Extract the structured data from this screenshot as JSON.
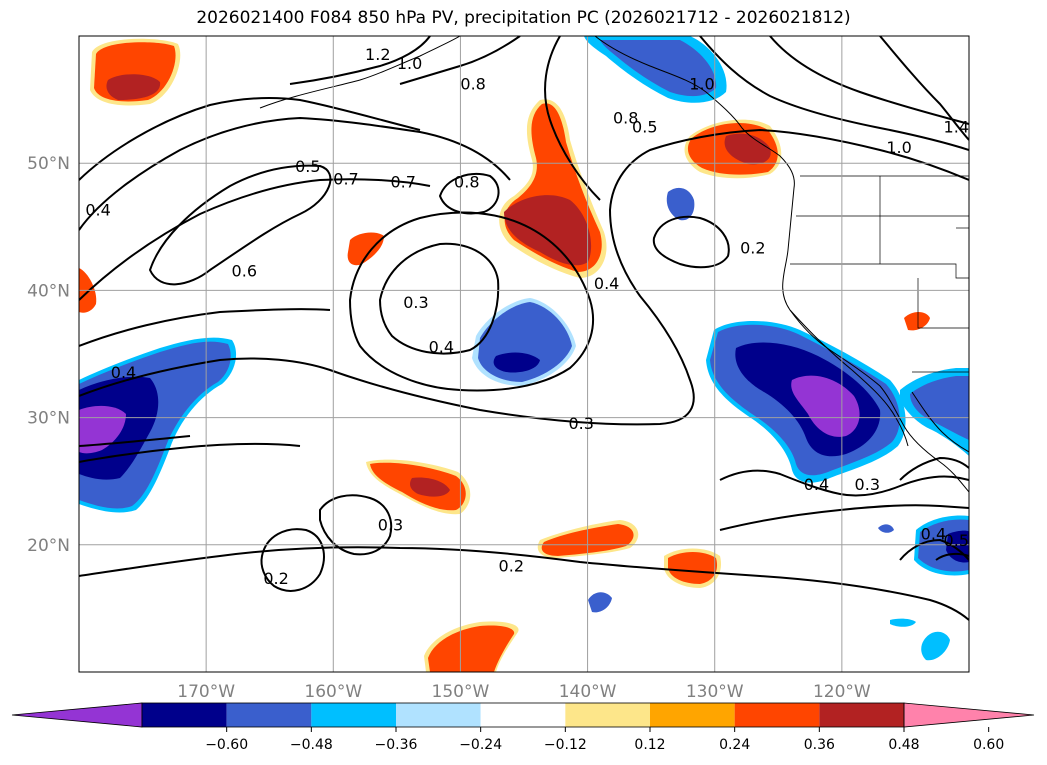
{
  "title": "2026021400 F084 850 hPa PV, precipitation PC (2026021712 - 2026021812)",
  "map": {
    "lat_labels": [
      {
        "lat": 50,
        "text": "50°N"
      },
      {
        "lat": 40,
        "text": "40°N"
      },
      {
        "lat": 30,
        "text": "30°N"
      },
      {
        "lat": 20,
        "text": "20°N"
      }
    ],
    "lon_labels": [
      {
        "lon": -170,
        "text": "170°W"
      },
      {
        "lon": -160,
        "text": "160°W"
      },
      {
        "lon": -150,
        "text": "150°W"
      },
      {
        "lon": -140,
        "text": "140°W"
      },
      {
        "lon": -130,
        "text": "130°W"
      },
      {
        "lon": -120,
        "text": "120°W"
      }
    ],
    "extent": {
      "lon_min": -180,
      "lon_max": -110,
      "lat_min": 10,
      "lat_max": 60
    },
    "grid": true,
    "grid_color": "#a0a0a0",
    "axis_label_color": "#808080",
    "land_border_color": "#000000"
  },
  "contour_labels": [
    {
      "text": "0.8",
      "lon": -149.5,
      "lat": 48.5
    },
    {
      "text": "0.7",
      "lon": -154.5,
      "lat": 48.5
    },
    {
      "text": "0.8",
      "lon": -137,
      "lat": 53.5
    },
    {
      "text": "0.8",
      "lon": -149,
      "lat": 56.2
    },
    {
      "text": "1.0",
      "lon": -131,
      "lat": 56.2
    },
    {
      "text": "0.5",
      "lon": -135.5,
      "lat": 52.8
    },
    {
      "text": "1.0",
      "lon": -115.5,
      "lat": 51.2
    },
    {
      "text": "1.4",
      "lon": -111,
      "lat": 52.8
    },
    {
      "text": "1.2",
      "lon": -156.5,
      "lat": 58.5
    },
    {
      "text": "1.0",
      "lon": -154,
      "lat": 57.8
    },
    {
      "text": "0.5",
      "lon": -162,
      "lat": 49.7
    },
    {
      "text": "0.7",
      "lon": -159,
      "lat": 48.7
    },
    {
      "text": "0.4",
      "lon": -178.5,
      "lat": 46.3
    },
    {
      "text": "0.6",
      "lon": -167,
      "lat": 41.5
    },
    {
      "text": "0.3",
      "lon": -153.5,
      "lat": 39
    },
    {
      "text": "0.4",
      "lon": -151.5,
      "lat": 35.5
    },
    {
      "text": "0.3",
      "lon": -140.5,
      "lat": 29.5
    },
    {
      "text": "0.4",
      "lon": -138.5,
      "lat": 40.5
    },
    {
      "text": "0.2",
      "lon": -127,
      "lat": 43.3
    },
    {
      "text": "0.4",
      "lon": -122,
      "lat": 24.7
    },
    {
      "text": "0.3",
      "lon": -118,
      "lat": 24.7
    },
    {
      "text": "0.4",
      "lon": -112.8,
      "lat": 20.8
    },
    {
      "text": "0.5",
      "lon": -111,
      "lat": 20.3
    },
    {
      "text": "0.4",
      "lon": -176.5,
      "lat": 33.5
    },
    {
      "text": "0.3",
      "lon": -155.5,
      "lat": 21.5
    },
    {
      "text": "0.2",
      "lon": -146,
      "lat": 18.3
    },
    {
      "text": "0.2",
      "lon": -164.5,
      "lat": 17.3
    }
  ],
  "colorbar": {
    "colors": [
      "#9434d4",
      "#00008b",
      "#3a5fcd",
      "#00bfff",
      "#b0e2ff",
      "#ffffff",
      "#fde68a",
      "#ffa500",
      "#ff4500",
      "#b22222",
      "#ff82ab"
    ],
    "tick_labels": [
      "−0.60",
      "−0.48",
      "−0.36",
      "−0.24",
      "−0.12",
      "0.12",
      "0.24",
      "0.36",
      "0.48",
      "0.60"
    ],
    "extend": "both"
  },
  "colors": {
    "neg_strong": "#9434d4",
    "neg_dark": "#00008b",
    "neg_mid": "#3a5fcd",
    "neg_light": "#00bfff",
    "neg_pale": "#b0e2ff",
    "pos_pale": "#fde68a",
    "pos_orange": "#ffa500",
    "pos_red": "#ff4500",
    "pos_dark": "#b22222",
    "pos_pink": "#ff82ab"
  }
}
